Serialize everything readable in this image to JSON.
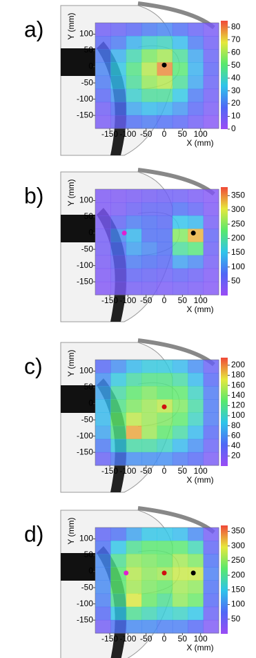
{
  "chart_data": [
    {
      "type": "heatmap",
      "label": "a)",
      "xlabel": "X (mm)",
      "ylabel": "Y (mm)",
      "xlim": [
        -190,
        150
      ],
      "ylim": [
        -190,
        135
      ],
      "xticks": [
        -150,
        -100,
        -50,
        0,
        50,
        100
      ],
      "yticks": [
        100,
        50,
        0,
        -50,
        -100,
        -150
      ],
      "clim": [
        0,
        85
      ],
      "cticks": [
        0,
        10,
        20,
        30,
        40,
        50,
        60,
        70,
        80
      ],
      "colormap": [
        "#9a4cf5",
        "#4f68f5",
        "#2ec4ea",
        "#58e86c",
        "#e6e83c",
        "#f04838"
      ],
      "values": [
        [
          10,
          12,
          15,
          20,
          22,
          18,
          12,
          8
        ],
        [
          15,
          20,
          30,
          38,
          40,
          32,
          20,
          10
        ],
        [
          20,
          30,
          42,
          55,
          60,
          45,
          28,
          12
        ],
        [
          22,
          35,
          48,
          62,
          78,
          50,
          30,
          14
        ],
        [
          20,
          32,
          45,
          58,
          62,
          45,
          28,
          12
        ],
        [
          15,
          25,
          38,
          45,
          45,
          35,
          20,
          10
        ],
        [
          10,
          18,
          28,
          32,
          30,
          25,
          15,
          8
        ],
        [
          8,
          12,
          18,
          20,
          18,
          15,
          10,
          5
        ]
      ],
      "points": [
        {
          "x": 0,
          "y": 5,
          "color": "#000000"
        }
      ]
    },
    {
      "type": "heatmap",
      "label": "b)",
      "xlabel": "X (mm)",
      "ylabel": "Y (mm)",
      "xlim": [
        -190,
        150
      ],
      "ylim": [
        -190,
        135
      ],
      "xticks": [
        -150,
        -100,
        -50,
        0,
        50,
        100
      ],
      "yticks": [
        100,
        50,
        0,
        -50,
        -100,
        -150
      ],
      "clim": [
        0,
        380
      ],
      "cticks": [
        50,
        100,
        150,
        200,
        250,
        300,
        350
      ],
      "colormap": [
        "#9a4cf5",
        "#4f68f5",
        "#2ec4ea",
        "#58e86c",
        "#e6e83c",
        "#f04838"
      ],
      "values": [
        [
          30,
          30,
          35,
          40,
          45,
          45,
          35,
          25
        ],
        [
          30,
          35,
          50,
          60,
          60,
          80,
          60,
          30
        ],
        [
          35,
          60,
          90,
          80,
          70,
          150,
          140,
          40
        ],
        [
          40,
          100,
          140,
          80,
          80,
          250,
          330,
          60
        ],
        [
          40,
          80,
          120,
          100,
          80,
          200,
          220,
          50
        ],
        [
          35,
          60,
          90,
          80,
          70,
          120,
          100,
          40
        ],
        [
          30,
          45,
          60,
          55,
          50,
          60,
          50,
          30
        ],
        [
          25,
          35,
          40,
          40,
          35,
          40,
          35,
          25
        ]
      ],
      "points": [
        {
          "x": -110,
          "y": 0,
          "color": "#e020d0"
        },
        {
          "x": 80,
          "y": 0,
          "color": "#000000"
        }
      ]
    },
    {
      "type": "heatmap",
      "label": "c)",
      "xlabel": "X (mm)",
      "ylabel": "Y (mm)",
      "xlim": [
        -190,
        150
      ],
      "ylim": [
        -190,
        135
      ],
      "xticks": [
        -150,
        -100,
        -50,
        0,
        50,
        100
      ],
      "yticks": [
        100,
        50,
        0,
        -50,
        -100,
        -150
      ],
      "clim": [
        0,
        215
      ],
      "cticks": [
        20,
        40,
        60,
        80,
        100,
        120,
        140,
        160,
        180,
        200
      ],
      "colormap": [
        "#9a4cf5",
        "#4f68f5",
        "#2ec4ea",
        "#58e86c",
        "#e6e83c",
        "#f04838"
      ],
      "values": [
        [
          40,
          60,
          80,
          90,
          90,
          80,
          60,
          30
        ],
        [
          60,
          90,
          110,
          120,
          120,
          110,
          80,
          40
        ],
        [
          70,
          110,
          130,
          140,
          130,
          130,
          100,
          50
        ],
        [
          80,
          120,
          140,
          150,
          160,
          140,
          110,
          50
        ],
        [
          80,
          130,
          160,
          150,
          140,
          130,
          100,
          50
        ],
        [
          70,
          120,
          190,
          150,
          130,
          110,
          80,
          40
        ],
        [
          50,
          90,
          110,
          110,
          100,
          80,
          60,
          30
        ],
        [
          30,
          50,
          60,
          60,
          60,
          50,
          40,
          20
        ]
      ],
      "points": [
        {
          "x": 0,
          "y": -10,
          "color": "#d01010"
        }
      ]
    },
    {
      "type": "heatmap",
      "label": "d)",
      "xlabel": "X (mm)",
      "ylabel": "Y (mm)",
      "xlim": [
        -190,
        150
      ],
      "ylim": [
        -190,
        135
      ],
      "xticks": [
        -150,
        -100,
        -50,
        0,
        50,
        100
      ],
      "yticks": [
        100,
        50,
        0,
        -50,
        -100,
        -150
      ],
      "clim": [
        0,
        370
      ],
      "cticks": [
        50,
        100,
        150,
        200,
        250,
        300,
        350
      ],
      "colormap": [
        "#9a4cf5",
        "#4f68f5",
        "#2ec4ea",
        "#58e86c",
        "#e6e83c",
        "#f04838"
      ],
      "values": [
        [
          60,
          80,
          120,
          150,
          150,
          140,
          100,
          40
        ],
        [
          80,
          150,
          200,
          220,
          220,
          220,
          180,
          60
        ],
        [
          100,
          200,
          250,
          240,
          230,
          260,
          240,
          80
        ],
        [
          100,
          220,
          270,
          250,
          260,
          280,
          280,
          90
        ],
        [
          100,
          220,
          260,
          240,
          230,
          260,
          250,
          80
        ],
        [
          90,
          200,
          290,
          230,
          200,
          250,
          230,
          70
        ],
        [
          70,
          150,
          200,
          180,
          160,
          170,
          150,
          50
        ],
        [
          40,
          80,
          100,
          100,
          90,
          90,
          70,
          30
        ]
      ],
      "points": [
        {
          "x": -105,
          "y": -5,
          "color": "#e020d0"
        },
        {
          "x": 0,
          "y": -5,
          "color": "#d01010"
        },
        {
          "x": 80,
          "y": -5,
          "color": "#000000"
        }
      ]
    }
  ]
}
